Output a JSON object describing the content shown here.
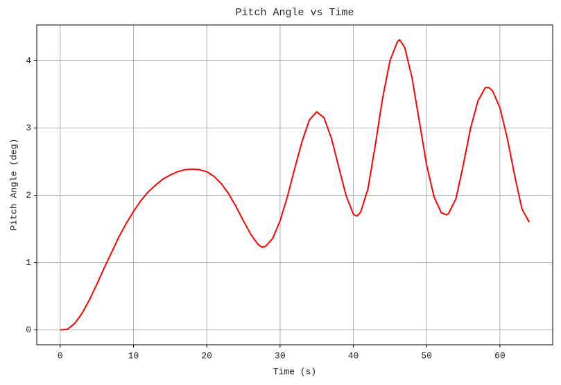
{
  "chart_data": {
    "type": "line",
    "title": "Pitch Angle vs Time",
    "x_label": "Time (s)",
    "y_label": "Pitch Angle (deg)",
    "x": [
      0,
      1,
      2,
      3,
      4,
      5,
      6,
      7,
      8,
      9,
      10,
      11,
      12,
      13,
      14,
      15,
      16,
      17,
      18,
      19,
      20,
      21,
      22,
      23,
      24,
      25,
      26,
      27,
      27.5,
      28,
      29,
      30,
      31,
      32,
      33,
      34,
      35,
      36,
      37,
      38,
      39,
      40,
      40.5,
      41,
      42,
      43,
      44,
      45,
      46,
      46.3,
      47,
      48,
      49,
      50,
      51,
      52,
      52.7,
      53,
      54,
      55,
      56,
      57,
      58,
      58.5,
      59,
      60,
      61,
      62,
      63,
      64
    ],
    "series": [
      {
        "name": "Pitch Angle",
        "color": "#ff0000",
        "values": [
          0,
          0.01,
          0.1,
          0.25,
          0.45,
          0.68,
          0.92,
          1.15,
          1.38,
          1.58,
          1.76,
          1.92,
          2.05,
          2.15,
          2.24,
          2.3,
          2.35,
          2.38,
          2.39,
          2.38,
          2.35,
          2.28,
          2.17,
          2.02,
          1.83,
          1.62,
          1.42,
          1.27,
          1.23,
          1.24,
          1.36,
          1.62,
          1.98,
          2.4,
          2.8,
          3.12,
          3.24,
          3.15,
          2.85,
          2.42,
          2.0,
          1.72,
          1.69,
          1.75,
          2.1,
          2.75,
          3.45,
          4.0,
          4.28,
          4.31,
          4.2,
          3.75,
          3.1,
          2.45,
          1.98,
          1.74,
          1.71,
          1.73,
          1.95,
          2.45,
          3.0,
          3.4,
          3.6,
          3.6,
          3.55,
          3.3,
          2.85,
          2.3,
          1.8,
          1.6
        ]
      }
    ],
    "xlim": [
      -3.2,
      67.2
    ],
    "xticks": [
      0,
      10,
      20,
      30,
      40,
      50,
      60
    ],
    "ylim": [
      -0.22,
      4.53
    ],
    "yticks": [
      0,
      1,
      2,
      3,
      4
    ],
    "grid": true
  }
}
